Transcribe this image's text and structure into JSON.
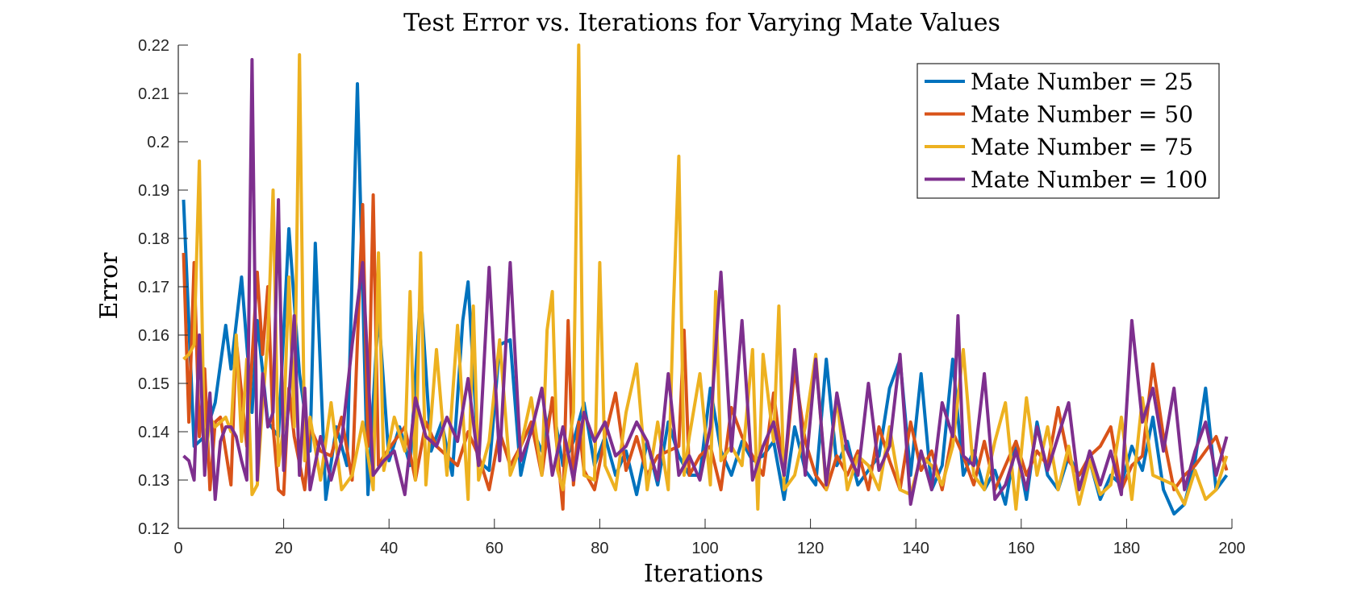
{
  "chart_data": {
    "type": "line",
    "title": "Test Error vs. Iterations for Varying Mate Values",
    "xlabel": "Iterations",
    "ylabel": "Error",
    "xlim": [
      0,
      200
    ],
    "ylim": [
      0.12,
      0.22
    ],
    "xticks": [
      "0",
      "20",
      "40",
      "60",
      "80",
      "100",
      "120",
      "140",
      "160",
      "180",
      "200"
    ],
    "yticks": [
      "0.12",
      "0.13",
      "0.14",
      "0.15",
      "0.16",
      "0.17",
      "0.18",
      "0.19",
      "0.2",
      "0.21",
      "0.22"
    ],
    "legend_position": "top-right",
    "grid": false,
    "series": [
      {
        "name": "Mate Number = 25",
        "color": "#0072BD",
        "x": [
          1,
          3,
          5,
          7,
          9,
          10,
          12,
          14,
          15,
          17,
          19,
          21,
          23,
          25,
          26,
          28,
          30,
          32,
          34,
          36,
          38,
          40,
          42,
          44,
          46,
          48,
          50,
          52,
          54,
          55,
          57,
          59,
          61,
          63,
          65,
          67,
          69,
          71,
          73,
          75,
          77,
          79,
          81,
          83,
          85,
          87,
          89,
          91,
          93,
          95,
          97,
          99,
          101,
          103,
          105,
          107,
          109,
          111,
          113,
          115,
          117,
          119,
          121,
          123,
          125,
          127,
          129,
          131,
          133,
          135,
          137,
          139,
          141,
          143,
          145,
          147,
          149,
          151,
          153,
          155,
          157,
          159,
          161,
          163,
          165,
          167,
          169,
          171,
          173,
          175,
          177,
          179,
          181,
          183,
          185,
          187,
          189,
          191,
          193,
          195,
          197,
          199
        ],
        "y": [
          0.188,
          0.137,
          0.139,
          0.146,
          0.162,
          0.153,
          0.172,
          0.144,
          0.163,
          0.142,
          0.139,
          0.182,
          0.152,
          0.136,
          0.179,
          0.126,
          0.141,
          0.133,
          0.212,
          0.127,
          0.165,
          0.134,
          0.141,
          0.133,
          0.169,
          0.136,
          0.142,
          0.131,
          0.163,
          0.171,
          0.134,
          0.132,
          0.158,
          0.159,
          0.131,
          0.141,
          0.136,
          0.146,
          0.133,
          0.138,
          0.146,
          0.133,
          0.139,
          0.131,
          0.136,
          0.127,
          0.138,
          0.129,
          0.142,
          0.135,
          0.131,
          0.131,
          0.149,
          0.136,
          0.131,
          0.138,
          0.134,
          0.135,
          0.138,
          0.126,
          0.141,
          0.132,
          0.129,
          0.155,
          0.133,
          0.138,
          0.129,
          0.132,
          0.135,
          0.149,
          0.155,
          0.131,
          0.152,
          0.128,
          0.133,
          0.155,
          0.131,
          0.136,
          0.128,
          0.132,
          0.125,
          0.138,
          0.126,
          0.142,
          0.131,
          0.128,
          0.135,
          0.131,
          0.134,
          0.126,
          0.131,
          0.129,
          0.137,
          0.132,
          0.143,
          0.128,
          0.123,
          0.125,
          0.134,
          0.149,
          0.128,
          0.131
        ]
      },
      {
        "name": "Mate Number = 50",
        "color": "#D95319",
        "x": [
          1,
          2,
          3,
          4,
          5,
          6,
          7,
          8,
          10,
          11,
          13,
          15,
          16,
          17,
          18,
          19,
          20,
          21,
          22,
          24,
          25,
          27,
          29,
          31,
          33,
          35,
          36,
          37,
          38,
          39,
          41,
          43,
          45,
          47,
          49,
          51,
          53,
          55,
          57,
          59,
          61,
          63,
          65,
          67,
          69,
          71,
          73,
          74,
          75,
          76,
          77,
          79,
          81,
          83,
          85,
          87,
          89,
          91,
          93,
          95,
          96,
          97,
          99,
          101,
          103,
          105,
          107,
          109,
          111,
          113,
          115,
          117,
          119,
          121,
          123,
          125,
          127,
          129,
          131,
          133,
          135,
          137,
          139,
          141,
          143,
          145,
          147,
          149,
          151,
          153,
          155,
          157,
          159,
          161,
          163,
          165,
          167,
          169,
          171,
          173,
          175,
          177,
          179,
          181,
          183,
          185,
          187,
          189,
          191,
          193,
          195,
          197,
          199
        ],
        "y": [
          0.177,
          0.142,
          0.175,
          0.139,
          0.153,
          0.128,
          0.142,
          0.143,
          0.129,
          0.159,
          0.137,
          0.173,
          0.156,
          0.17,
          0.141,
          0.128,
          0.127,
          0.149,
          0.139,
          0.128,
          0.141,
          0.136,
          0.135,
          0.143,
          0.13,
          0.187,
          0.137,
          0.189,
          0.133,
          0.135,
          0.138,
          0.141,
          0.13,
          0.142,
          0.137,
          0.135,
          0.133,
          0.14,
          0.135,
          0.128,
          0.14,
          0.133,
          0.137,
          0.142,
          0.131,
          0.147,
          0.124,
          0.163,
          0.129,
          0.142,
          0.132,
          0.128,
          0.139,
          0.148,
          0.132,
          0.139,
          0.131,
          0.135,
          0.136,
          0.137,
          0.161,
          0.131,
          0.135,
          0.137,
          0.128,
          0.145,
          0.139,
          0.135,
          0.131,
          0.148,
          0.131,
          0.153,
          0.138,
          0.131,
          0.128,
          0.135,
          0.131,
          0.136,
          0.128,
          0.141,
          0.134,
          0.128,
          0.142,
          0.132,
          0.136,
          0.128,
          0.14,
          0.135,
          0.129,
          0.138,
          0.128,
          0.133,
          0.138,
          0.131,
          0.136,
          0.133,
          0.145,
          0.134,
          0.131,
          0.135,
          0.137,
          0.141,
          0.128,
          0.133,
          0.135,
          0.154,
          0.139,
          0.128,
          0.131,
          0.133,
          0.136,
          0.139,
          0.132
        ]
      },
      {
        "name": "Mate Number = 75",
        "color": "#EDB120",
        "x": [
          1,
          2,
          3,
          4,
          5,
          6,
          7,
          9,
          10,
          11,
          12,
          13,
          14,
          15,
          16,
          17,
          18,
          19,
          20,
          21,
          22,
          23,
          24,
          25,
          27,
          29,
          31,
          33,
          35,
          37,
          38,
          39,
          41,
          43,
          44,
          45,
          46,
          47,
          49,
          51,
          53,
          55,
          56,
          57,
          59,
          61,
          63,
          65,
          67,
          69,
          70,
          71,
          72,
          73,
          75,
          76,
          77,
          79,
          80,
          81,
          83,
          85,
          87,
          89,
          91,
          93,
          94,
          95,
          96,
          97,
          99,
          101,
          102,
          103,
          105,
          107,
          109,
          110,
          111,
          113,
          114,
          115,
          117,
          119,
          121,
          123,
          125,
          127,
          129,
          131,
          133,
          135,
          137,
          139,
          141,
          143,
          145,
          147,
          149,
          151,
          153,
          155,
          157,
          159,
          161,
          163,
          165,
          167,
          169,
          171,
          173,
          175,
          177,
          179,
          181,
          183,
          185,
          187,
          189,
          191,
          193,
          195,
          197,
          199
        ],
        "y": [
          0.155,
          0.156,
          0.158,
          0.196,
          0.132,
          0.143,
          0.141,
          0.143,
          0.14,
          0.16,
          0.138,
          0.155,
          0.127,
          0.129,
          0.146,
          0.159,
          0.19,
          0.133,
          0.141,
          0.172,
          0.141,
          0.218,
          0.134,
          0.143,
          0.13,
          0.146,
          0.128,
          0.131,
          0.142,
          0.128,
          0.177,
          0.132,
          0.143,
          0.136,
          0.169,
          0.13,
          0.177,
          0.129,
          0.157,
          0.131,
          0.162,
          0.126,
          0.166,
          0.13,
          0.138,
          0.159,
          0.131,
          0.137,
          0.147,
          0.131,
          0.161,
          0.169,
          0.132,
          0.128,
          0.144,
          0.22,
          0.131,
          0.13,
          0.175,
          0.133,
          0.128,
          0.144,
          0.154,
          0.128,
          0.142,
          0.128,
          0.166,
          0.197,
          0.131,
          0.139,
          0.152,
          0.129,
          0.169,
          0.134,
          0.137,
          0.133,
          0.157,
          0.124,
          0.156,
          0.138,
          0.166,
          0.128,
          0.131,
          0.141,
          0.156,
          0.128,
          0.147,
          0.128,
          0.135,
          0.133,
          0.128,
          0.141,
          0.128,
          0.127,
          0.135,
          0.133,
          0.129,
          0.137,
          0.157,
          0.131,
          0.128,
          0.138,
          0.146,
          0.124,
          0.147,
          0.131,
          0.141,
          0.128,
          0.137,
          0.125,
          0.134,
          0.127,
          0.129,
          0.143,
          0.126,
          0.147,
          0.131,
          0.13,
          0.129,
          0.125,
          0.132,
          0.126,
          0.128,
          0.135
        ]
      },
      {
        "name": "Mate Number = 100",
        "color": "#7E2F8E",
        "x": [
          1,
          2,
          3,
          4,
          5,
          6,
          7,
          8,
          9,
          10,
          11,
          12,
          13,
          14,
          15,
          16,
          17,
          18,
          19,
          20,
          21,
          22,
          23,
          24,
          25,
          27,
          29,
          31,
          33,
          35,
          37,
          39,
          41,
          43,
          45,
          47,
          49,
          51,
          53,
          55,
          57,
          59,
          61,
          63,
          65,
          67,
          69,
          71,
          73,
          75,
          77,
          79,
          81,
          83,
          85,
          87,
          89,
          91,
          93,
          95,
          97,
          99,
          101,
          103,
          105,
          107,
          109,
          111,
          113,
          115,
          117,
          119,
          121,
          123,
          125,
          127,
          129,
          131,
          133,
          135,
          137,
          139,
          141,
          143,
          145,
          147,
          148,
          149,
          151,
          153,
          155,
          157,
          159,
          161,
          163,
          165,
          167,
          169,
          171,
          173,
          175,
          177,
          179,
          181,
          183,
          185,
          187,
          189,
          191,
          193,
          195,
          197,
          199
        ],
        "y": [
          0.135,
          0.134,
          0.13,
          0.16,
          0.131,
          0.148,
          0.126,
          0.138,
          0.141,
          0.141,
          0.139,
          0.134,
          0.13,
          0.217,
          0.13,
          0.152,
          0.141,
          0.144,
          0.188,
          0.132,
          0.147,
          0.164,
          0.131,
          0.149,
          0.128,
          0.139,
          0.13,
          0.138,
          0.158,
          0.175,
          0.131,
          0.134,
          0.136,
          0.127,
          0.147,
          0.139,
          0.137,
          0.143,
          0.138,
          0.151,
          0.133,
          0.174,
          0.134,
          0.175,
          0.134,
          0.14,
          0.149,
          0.131,
          0.141,
          0.13,
          0.144,
          0.138,
          0.142,
          0.135,
          0.137,
          0.142,
          0.138,
          0.13,
          0.152,
          0.131,
          0.135,
          0.13,
          0.141,
          0.173,
          0.136,
          0.163,
          0.13,
          0.137,
          0.142,
          0.131,
          0.157,
          0.131,
          0.155,
          0.129,
          0.148,
          0.136,
          0.131,
          0.15,
          0.132,
          0.137,
          0.156,
          0.125,
          0.136,
          0.128,
          0.146,
          0.139,
          0.164,
          0.135,
          0.133,
          0.152,
          0.126,
          0.129,
          0.136,
          0.128,
          0.141,
          0.132,
          0.139,
          0.146,
          0.128,
          0.136,
          0.129,
          0.136,
          0.127,
          0.163,
          0.142,
          0.149,
          0.136,
          0.149,
          0.128,
          0.136,
          0.142,
          0.131,
          0.139
        ]
      }
    ]
  }
}
